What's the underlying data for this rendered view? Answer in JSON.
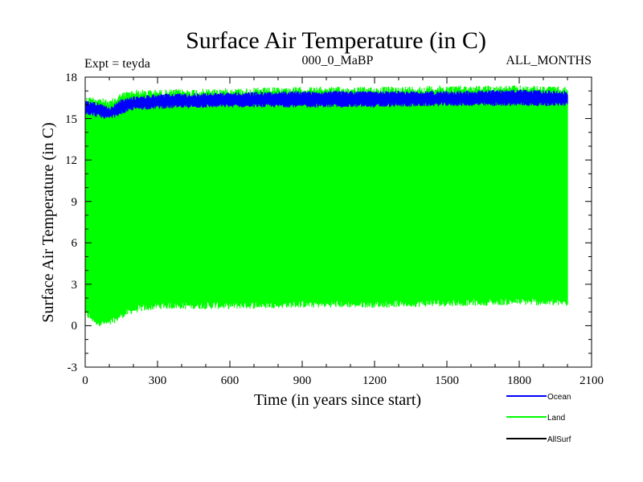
{
  "chart_data": {
    "type": "line",
    "title": "Surface Air Temperature (in C)",
    "experiment_label": "Expt = teyda",
    "period_label": "000_0_MaBP",
    "months_label": "ALL_MONTHS",
    "xlabel": "Time (in years since start)",
    "ylabel": "Surface Air Temperature (in C)",
    "xlim": [
      0,
      2100
    ],
    "ylim": [
      -3,
      18
    ],
    "x_ticks": [
      0,
      300,
      600,
      900,
      1200,
      1500,
      1800,
      2100
    ],
    "y_ticks": [
      -3,
      0,
      3,
      6,
      9,
      12,
      15,
      18
    ],
    "x_tick_labels": [
      "0",
      "300",
      "600",
      "900",
      "1200",
      "1500",
      "1800",
      "2100"
    ],
    "y_tick_labels": [
      "-3",
      "0",
      "3",
      "6",
      "9",
      "12",
      "15",
      "18"
    ],
    "grid": false,
    "legend_position": "bottom-right",
    "x_range": [
      0,
      2000
    ],
    "series": [
      {
        "name": "Land",
        "color": "#00ff00",
        "description": "seasonal cycle, monthly values",
        "x": [
          0,
          50,
          100,
          150,
          200,
          300,
          600,
          900,
          1200,
          1500,
          1800,
          2000
        ],
        "upper": [
          16.6,
          16.6,
          16.3,
          16.9,
          17.1,
          17.1,
          17.2,
          17.3,
          17.3,
          17.4,
          17.4,
          17.3
        ],
        "lower": [
          0.6,
          0.0,
          -0.1,
          0.5,
          0.9,
          1.2,
          1.2,
          1.3,
          1.3,
          1.4,
          1.5,
          1.4
        ]
      },
      {
        "name": "Ocean",
        "color": "#0000ff",
        "description": "seasonal cycle, monthly values",
        "x": [
          0,
          50,
          100,
          150,
          200,
          300,
          600,
          900,
          1200,
          1500,
          1800,
          2000
        ],
        "upper": [
          16.3,
          16.2,
          15.8,
          16.4,
          16.6,
          16.8,
          16.9,
          17.0,
          17.0,
          17.0,
          17.1,
          17.0
        ],
        "lower": [
          15.3,
          15.1,
          14.9,
          15.3,
          15.6,
          15.7,
          15.8,
          15.8,
          15.8,
          15.9,
          15.9,
          15.9
        ]
      },
      {
        "name": "AllSurf",
        "color": "#000000",
        "description": "not visible in plot area"
      }
    ]
  }
}
